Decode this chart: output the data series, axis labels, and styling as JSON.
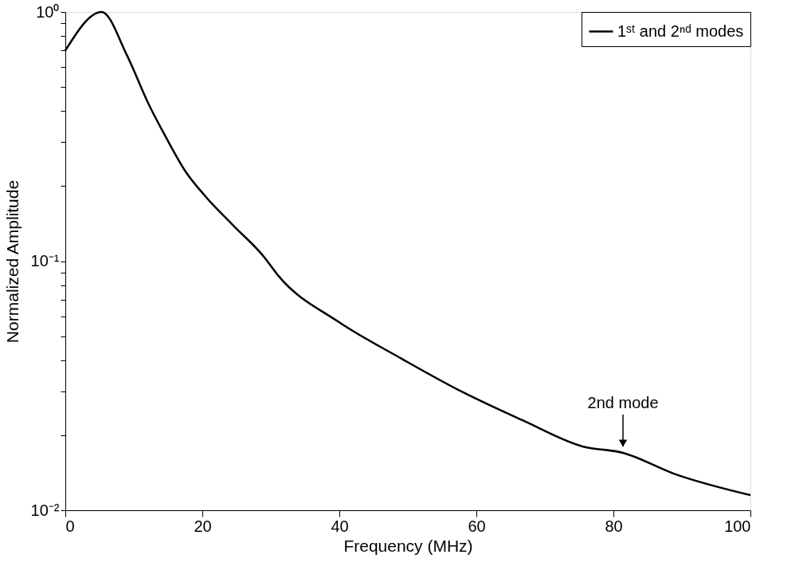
{
  "chart_data": {
    "type": "line",
    "xlabel": "Frequency (MHz)",
    "ylabel": "Normalized Amplitude",
    "x": [
      0,
      5.3,
      9.0,
      12.1,
      14.8,
      17.5,
      20.6,
      24.4,
      29.0,
      31.0,
      39.9,
      48.8,
      57.8,
      66.7,
      75.6,
      81.4,
      88.9,
      100
    ],
    "series": [
      {
        "name": "1ˢᵗ and 2ⁿᵈ modes",
        "color": "#000000",
        "values": [
          0.7,
          1.0,
          0.67,
          0.43,
          0.31,
          0.23,
          0.18,
          0.14,
          0.104,
          0.088,
          0.057,
          0.041,
          0.03,
          0.023,
          0.018,
          0.017,
          0.014,
          0.0115
        ]
      }
    ],
    "log": "y",
    "xlim": [
      0,
      100
    ],
    "xticks": [
      0,
      20,
      40,
      60,
      80,
      100
    ],
    "ylim": [
      0.01,
      1
    ],
    "yticks": [
      {
        "value": 0.01,
        "label": "10⁻²"
      },
      {
        "value": 0.02,
        "label": null
      },
      {
        "value": 0.03,
        "label": null
      },
      {
        "value": 0.04,
        "label": null
      },
      {
        "value": 0.05,
        "label": null
      },
      {
        "value": 0.06,
        "label": null
      },
      {
        "value": 0.07,
        "label": null
      },
      {
        "value": 0.08,
        "label": null
      },
      {
        "value": 0.09,
        "label": null
      },
      {
        "value": 0.1,
        "label": "10⁻¹"
      },
      {
        "value": 0.2,
        "label": null
      },
      {
        "value": 0.3,
        "label": null
      },
      {
        "value": 0.4,
        "label": null
      },
      {
        "value": 0.5,
        "label": null
      },
      {
        "value": 0.6,
        "label": null
      },
      {
        "value": 0.7,
        "label": null
      },
      {
        "value": 0.8,
        "label": null
      },
      {
        "value": 0.9,
        "label": null
      },
      {
        "value": 1,
        "label": "10⁰"
      }
    ],
    "annotations": [
      {
        "text": "2nd mode",
        "x": 81.4,
        "y": 0.017
      }
    ],
    "legend": "top right",
    "grid": false,
    "marker": "none",
    "line_style": "solid"
  }
}
